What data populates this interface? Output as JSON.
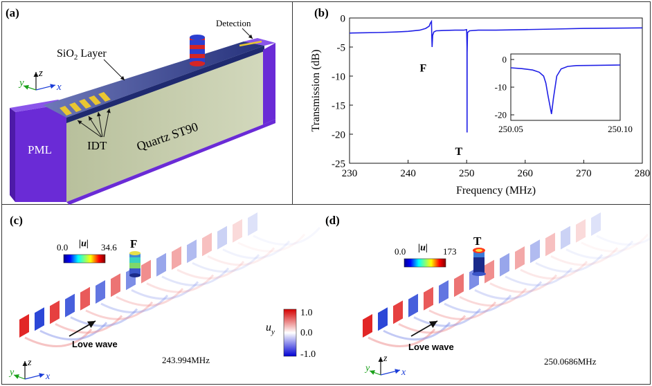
{
  "figure": {
    "panel_a": {
      "label": "(a)",
      "detection_label": "Detection",
      "sio2_label": "SiO",
      "sio2_sub": "2",
      "sio2_suffix": " Layer",
      "pml_label": "PML",
      "idt_label": "IDT",
      "quartz_label": "Quartz ST90",
      "axis_y": "y",
      "axis_z": "z",
      "axis_x": "x",
      "colors": {
        "pml": "#6a2bd6",
        "block_face": "#c8cfae",
        "layer": "#3b4a9e",
        "idt": "#e9c631"
      }
    },
    "panel_b": {
      "label": "(b)"
    },
    "panel_c": {
      "label": "(c)",
      "mode_label": "F",
      "colorbar_min": "0.0",
      "colorbar_title": "|u|",
      "colorbar_max": "34.6",
      "wave_label": "Love wave",
      "frequency": "243.994MHz",
      "axis_y": "y",
      "axis_z": "z",
      "axis_x": "x"
    },
    "panel_d": {
      "label": "(d)",
      "mode_label": "T",
      "colorbar_min": "0.0",
      "colorbar_title": "|u|",
      "colorbar_max": "173",
      "wave_label": "Love wave",
      "frequency": "250.0686MHz",
      "axis_y": "y",
      "axis_z": "z",
      "axis_x": "x"
    },
    "uy_colorbar": {
      "symbol": "u",
      "subscript": "y",
      "max": "1.0",
      "mid": "0.0",
      "min": "-1.0"
    }
  },
  "chart_data": [
    {
      "type": "line",
      "panel": "(b)",
      "xlabel": "Frequency (MHz)",
      "ylabel": "Transmission (dB)",
      "xlim": [
        230,
        280
      ],
      "ylim": [
        -25,
        0
      ],
      "xticks": [
        "230",
        "240",
        "250",
        "260",
        "270",
        "280"
      ],
      "yticks": [
        "-25",
        "-20",
        "-15",
        "-10",
        "-5",
        "0"
      ],
      "color": "#1f1fe6",
      "annotations": [
        {
          "text": "F",
          "x": 243.99
        },
        {
          "text": "T",
          "x": 250.07
        }
      ],
      "series": [
        {
          "x": [
            230,
            232,
            235,
            238,
            240,
            242,
            243.0,
            243.6,
            243.8,
            243.99,
            244.05,
            244.1,
            244.2,
            244.4,
            244.8,
            246,
            248,
            249.5,
            250.0,
            250.06,
            250.0686,
            250.08,
            250.15,
            250.5,
            252,
            255,
            260,
            265,
            270,
            275,
            280
          ],
          "y": [
            -2.6,
            -2.55,
            -2.5,
            -2.4,
            -2.3,
            -2.1,
            -1.8,
            -1.4,
            -0.9,
            -0.6,
            -3.5,
            -5.0,
            -3.0,
            -2.4,
            -2.2,
            -2.15,
            -2.1,
            -2.1,
            -2.0,
            -5.0,
            -19.7,
            -6.0,
            -2.5,
            -2.2,
            -2.1,
            -2.1,
            -2.0,
            -1.9,
            -1.8,
            -1.75,
            -1.7
          ]
        }
      ]
    },
    {
      "type": "line",
      "panel": "(b) inset",
      "xlim": [
        250.05,
        250.1
      ],
      "ylim": [
        -22,
        2
      ],
      "xticks": [
        "250.05",
        "250.10"
      ],
      "yticks": [
        "0",
        "-10",
        "-20"
      ],
      "color": "#1f1fe6",
      "series": [
        {
          "x": [
            250.05,
            250.055,
            250.06,
            250.063,
            250.065,
            250.066,
            250.067,
            250.0686,
            250.0695,
            250.071,
            250.073,
            250.076,
            250.08,
            250.09,
            250.1
          ],
          "y": [
            -3.0,
            -3.3,
            -3.8,
            -4.6,
            -6.0,
            -8.5,
            -13.0,
            -19.7,
            -14.0,
            -6.0,
            -3.4,
            -2.5,
            -2.2,
            -2.1,
            -2.0
          ]
        }
      ]
    }
  ]
}
